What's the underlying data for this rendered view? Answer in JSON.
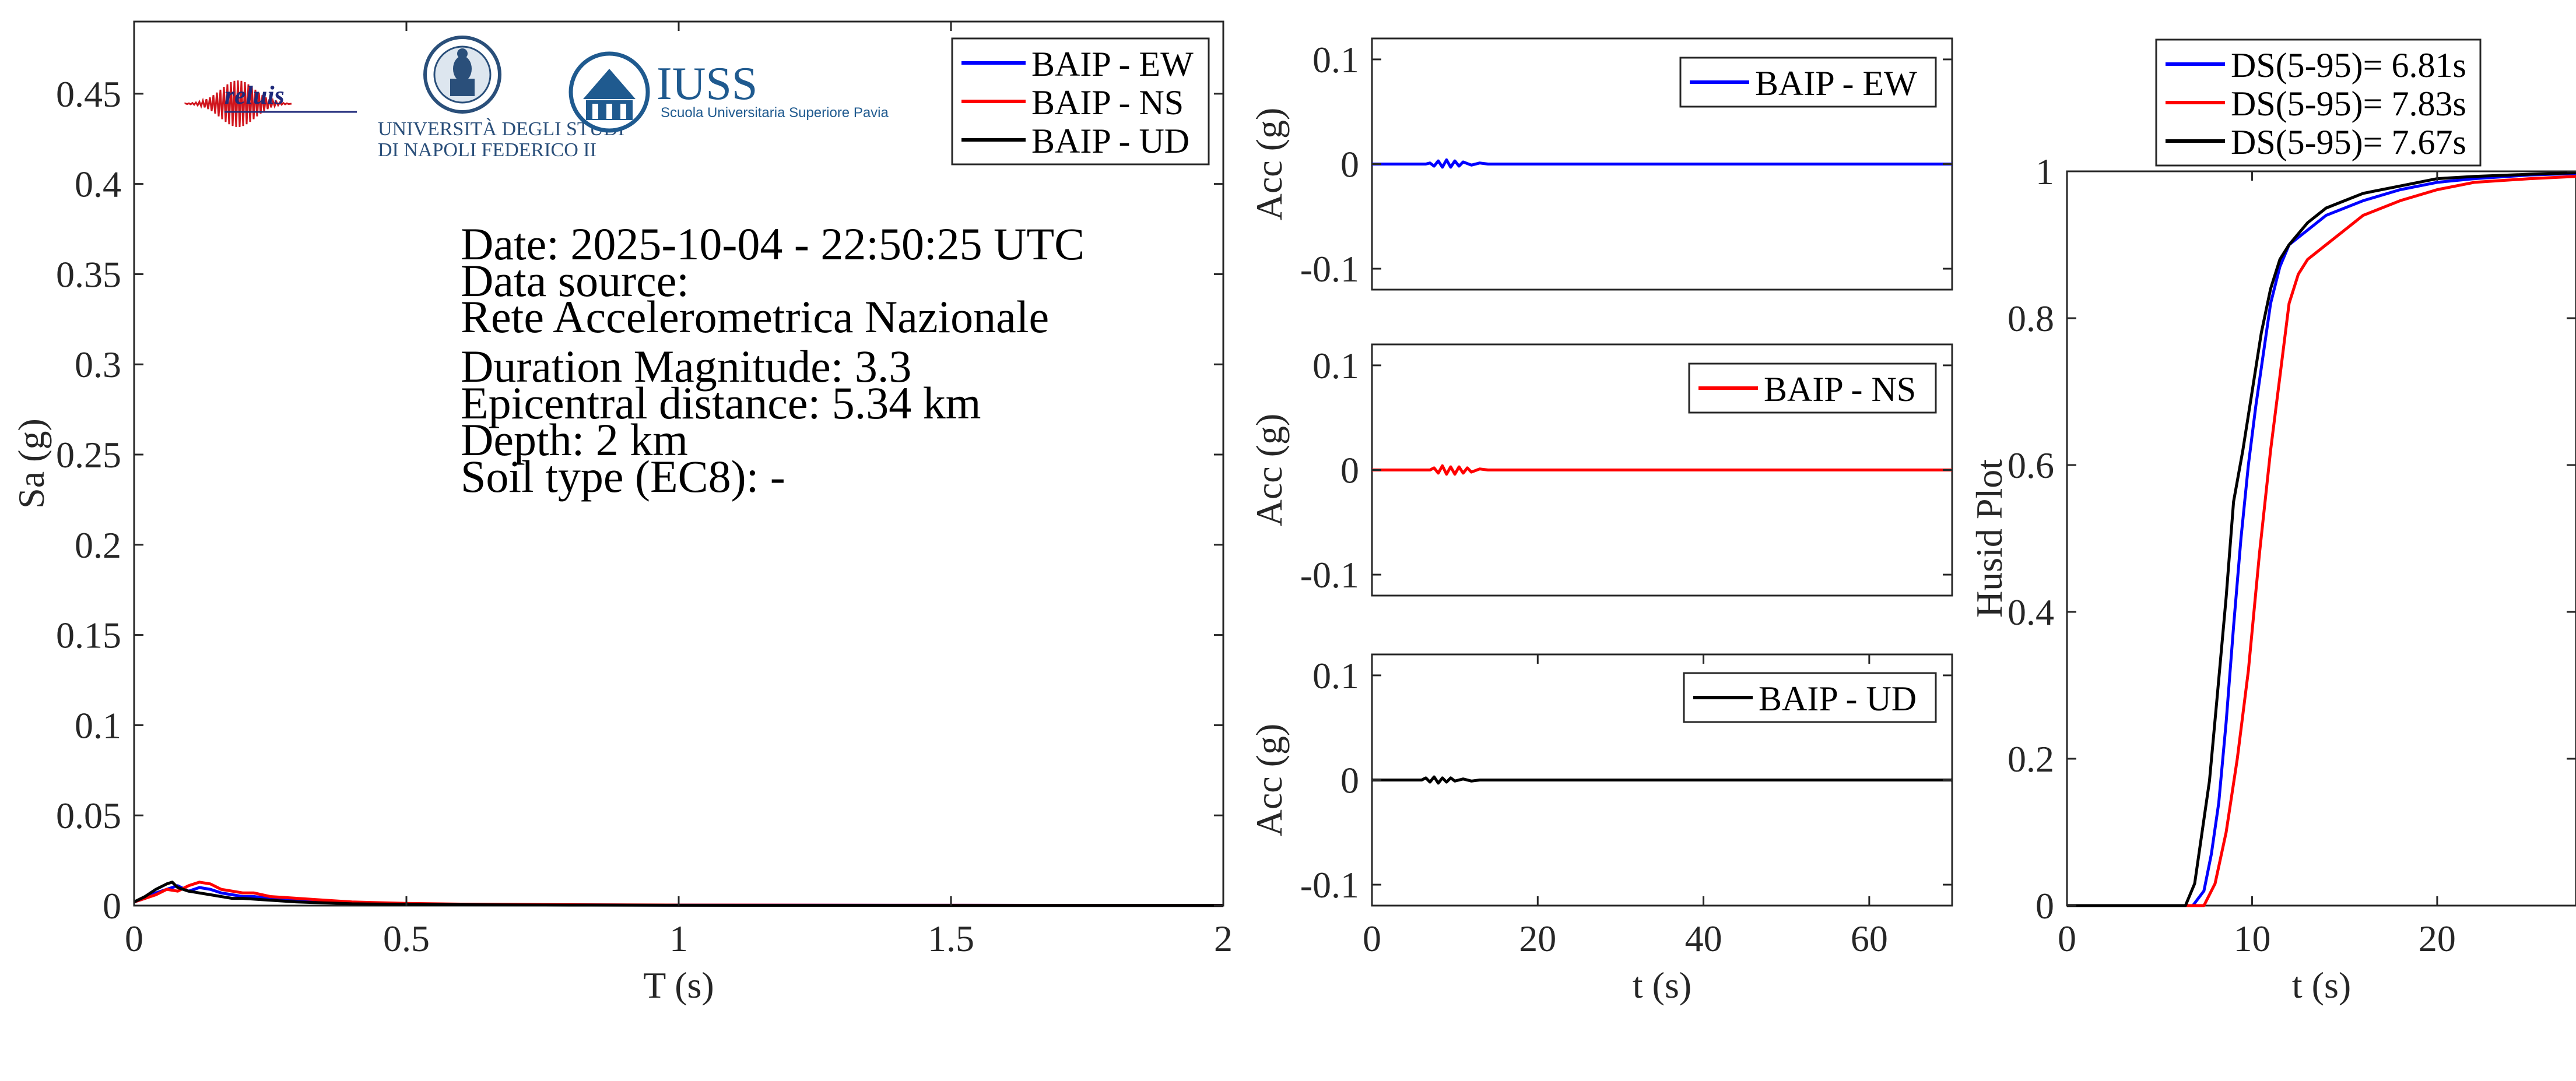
{
  "info": {
    "date_line": "Date: 2025-10-04 - 22:50:25 UTC",
    "source_label": "Data source:",
    "source_value": "Rete Accelerometrica Nazionale",
    "magnitude": "Duration Magnitude: 3.3",
    "distance": "Epicentral distance: 5.34 km",
    "depth": "Depth: 2 km",
    "soil": "Soil type (EC8): -"
  },
  "logos": {
    "reluis": "reluis",
    "unina_line1": "UNIVERSITÀ DEGLI STUDI",
    "unina_line2": "DI NAPOLI FEDERICO II",
    "iuss_name": "IUSS",
    "iuss_sub": "Scuola Universitaria Superiore Pavia",
    "reluis_icon": "seismogram-logo-icon",
    "unina_icon": "university-seal-icon",
    "iuss_icon": "iuss-building-icon"
  },
  "colors": {
    "ew": "#0000ff",
    "ns": "#ff0000",
    "ud": "#000000"
  },
  "chart_data": [
    {
      "id": "spectrum",
      "type": "line",
      "xlabel": "T (s)",
      "ylabel": "Sa (g)",
      "xlim": [
        0,
        2
      ],
      "ylim": [
        0,
        0.49
      ],
      "xticks": [
        0,
        0.5,
        1,
        1.5,
        2
      ],
      "xtick_labels": [
        "0",
        "0.5",
        "1",
        "1.5",
        "2"
      ],
      "yticks": [
        0,
        0.05,
        0.1,
        0.15,
        0.2,
        0.25,
        0.3,
        0.35,
        0.4,
        0.45
      ],
      "ytick_labels": [
        "0",
        "0.05",
        "0.1",
        "0.15",
        "0.2",
        "0.25",
        "0.3",
        "0.35",
        "0.4",
        "0.45"
      ],
      "legend": "top-right",
      "series": [
        {
          "name": "BAIP - EW",
          "color": "#0000ff",
          "x": [
            0,
            0.02,
            0.04,
            0.06,
            0.08,
            0.1,
            0.12,
            0.14,
            0.16,
            0.18,
            0.2,
            0.22,
            0.25,
            0.3,
            0.35,
            0.4,
            0.5,
            0.6,
            0.8,
            1.0,
            1.5,
            2.0
          ],
          "y": [
            0.002,
            0.004,
            0.007,
            0.009,
            0.011,
            0.008,
            0.01,
            0.009,
            0.007,
            0.006,
            0.005,
            0.005,
            0.004,
            0.003,
            0.002,
            0.0015,
            0.001,
            0.0007,
            0.0004,
            0.0003,
            0.0002,
            0.0001
          ]
        },
        {
          "name": "BAIP - NS",
          "color": "#ff0000",
          "x": [
            0,
            0.02,
            0.04,
            0.06,
            0.08,
            0.1,
            0.12,
            0.14,
            0.16,
            0.18,
            0.2,
            0.22,
            0.25,
            0.3,
            0.35,
            0.4,
            0.5,
            0.6,
            0.8,
            1.0,
            1.5,
            2.0
          ],
          "y": [
            0.002,
            0.004,
            0.006,
            0.009,
            0.008,
            0.011,
            0.013,
            0.012,
            0.009,
            0.008,
            0.007,
            0.007,
            0.005,
            0.004,
            0.003,
            0.002,
            0.0012,
            0.0008,
            0.0005,
            0.0003,
            0.0002,
            0.0001
          ]
        },
        {
          "name": "BAIP - UD",
          "color": "#000000",
          "x": [
            0,
            0.02,
            0.04,
            0.06,
            0.07,
            0.08,
            0.1,
            0.12,
            0.14,
            0.16,
            0.18,
            0.2,
            0.25,
            0.3,
            0.35,
            0.4,
            0.5,
            0.6,
            0.8,
            1.0,
            1.5,
            2.0
          ],
          "y": [
            0.002,
            0.005,
            0.009,
            0.012,
            0.013,
            0.01,
            0.008,
            0.007,
            0.006,
            0.005,
            0.004,
            0.004,
            0.003,
            0.002,
            0.0015,
            0.001,
            0.0007,
            0.0005,
            0.0003,
            0.0002,
            0.0001,
            0.0001
          ]
        }
      ]
    },
    {
      "id": "acc_ew",
      "type": "line",
      "xlabel": "",
      "ylabel": "Acc (g)",
      "xlim": [
        0,
        70
      ],
      "ylim": [
        -0.12,
        0.12
      ],
      "xticks": [],
      "xtick_labels": [],
      "yticks": [
        -0.1,
        0,
        0.1
      ],
      "ytick_labels": [
        "-0.1",
        "0",
        "0.1"
      ],
      "legend": "top-right",
      "series": [
        {
          "name": "BAIP - EW",
          "color": "#0000ff",
          "x": [
            0,
            6.5,
            7,
            7.5,
            8,
            8.5,
            9,
            9.5,
            10,
            10.5,
            11,
            12,
            13,
            14,
            70
          ],
          "y": [
            0,
            0,
            0.001,
            -0.002,
            0.003,
            -0.003,
            0.004,
            -0.003,
            0.003,
            -0.002,
            0.002,
            -0.001,
            0.001,
            0,
            0
          ]
        }
      ]
    },
    {
      "id": "acc_ns",
      "type": "line",
      "xlabel": "",
      "ylabel": "Acc (g)",
      "xlim": [
        0,
        70
      ],
      "ylim": [
        -0.12,
        0.12
      ],
      "xticks": [],
      "xtick_labels": [],
      "yticks": [
        -0.1,
        0,
        0.1
      ],
      "ytick_labels": [
        "-0.1",
        "0",
        "0.1"
      ],
      "legend": "top-right",
      "series": [
        {
          "name": "BAIP - NS",
          "color": "#ff0000",
          "x": [
            0,
            7,
            7.5,
            8,
            8.5,
            9,
            9.5,
            10,
            10.5,
            11,
            11.5,
            12,
            13,
            14,
            70
          ],
          "y": [
            0,
            0,
            0.002,
            -0.003,
            0.004,
            -0.004,
            0.003,
            -0.004,
            0.003,
            -0.003,
            0.002,
            -0.002,
            0.001,
            0,
            0
          ]
        }
      ]
    },
    {
      "id": "acc_ud",
      "type": "line",
      "xlabel": "t (s)",
      "ylabel": "Acc (g)",
      "xlim": [
        0,
        70
      ],
      "ylim": [
        -0.12,
        0.12
      ],
      "xticks": [
        0,
        20,
        40,
        60
      ],
      "xtick_labels": [
        "0",
        "20",
        "40",
        "60"
      ],
      "yticks": [
        -0.1,
        0,
        0.1
      ],
      "ytick_labels": [
        "-0.1",
        "0",
        "0.1"
      ],
      "legend": "top-right",
      "series": [
        {
          "name": "BAIP - UD",
          "color": "#000000",
          "x": [
            0,
            6,
            6.5,
            7,
            7.5,
            8,
            8.5,
            9,
            9.5,
            10,
            11,
            12,
            13,
            70
          ],
          "y": [
            0,
            0,
            0.002,
            -0.002,
            0.003,
            -0.003,
            0.002,
            -0.002,
            0.002,
            -0.001,
            0.001,
            -0.001,
            0,
            0
          ]
        }
      ]
    },
    {
      "id": "husid",
      "type": "line",
      "xlabel": "t (s)",
      "ylabel": "Husid Plot",
      "xlim": [
        0,
        27.5
      ],
      "ylim": [
        0,
        1
      ],
      "xticks": [
        0,
        10,
        20
      ],
      "xtick_labels": [
        "0",
        "10",
        "20"
      ],
      "yticks": [
        0,
        0.2,
        0.4,
        0.6,
        0.8,
        1
      ],
      "ytick_labels": [
        "0",
        "0.2",
        "0.4",
        "0.6",
        "0.8",
        "1"
      ],
      "legend": "above",
      "series": [
        {
          "name": "DS(5-95)= 6.81s",
          "color": "#0000ff",
          "x": [
            0,
            6.8,
            7.4,
            7.8,
            8.2,
            8.6,
            9.0,
            9.4,
            9.8,
            10.2,
            10.6,
            11.0,
            11.5,
            12.0,
            13.0,
            14.0,
            16.0,
            18.0,
            20.0,
            22.0,
            25.0,
            27.5
          ],
          "y": [
            0,
            0,
            0.02,
            0.07,
            0.14,
            0.25,
            0.38,
            0.5,
            0.6,
            0.68,
            0.75,
            0.82,
            0.87,
            0.9,
            0.92,
            0.94,
            0.96,
            0.975,
            0.985,
            0.99,
            0.995,
            0.997
          ]
        },
        {
          "name": "DS(5-95)= 7.83s",
          "color": "#ff0000",
          "x": [
            0,
            7.4,
            8.0,
            8.6,
            9.2,
            9.8,
            10.4,
            11.0,
            11.5,
            12.0,
            12.5,
            13.0,
            14.0,
            15.0,
            16.0,
            18.0,
            20.0,
            22.0,
            25.0,
            27.5
          ],
          "y": [
            0,
            0,
            0.03,
            0.1,
            0.2,
            0.32,
            0.48,
            0.62,
            0.72,
            0.82,
            0.86,
            0.88,
            0.9,
            0.92,
            0.94,
            0.96,
            0.975,
            0.985,
            0.99,
            0.993
          ]
        },
        {
          "name": "DS(5-95)= 7.67s",
          "color": "#000000",
          "x": [
            0,
            6.4,
            6.9,
            7.3,
            7.7,
            8.1,
            8.6,
            9.0,
            9.5,
            10.0,
            10.5,
            11.0,
            11.5,
            12.0,
            13.0,
            14.0,
            16.0,
            18.0,
            20.0,
            22.0,
            25.0,
            27.5
          ],
          "y": [
            0,
            0,
            0.03,
            0.1,
            0.17,
            0.28,
            0.42,
            0.55,
            0.62,
            0.7,
            0.78,
            0.84,
            0.88,
            0.9,
            0.93,
            0.95,
            0.97,
            0.98,
            0.99,
            0.993,
            0.996,
            0.998
          ]
        }
      ]
    }
  ]
}
